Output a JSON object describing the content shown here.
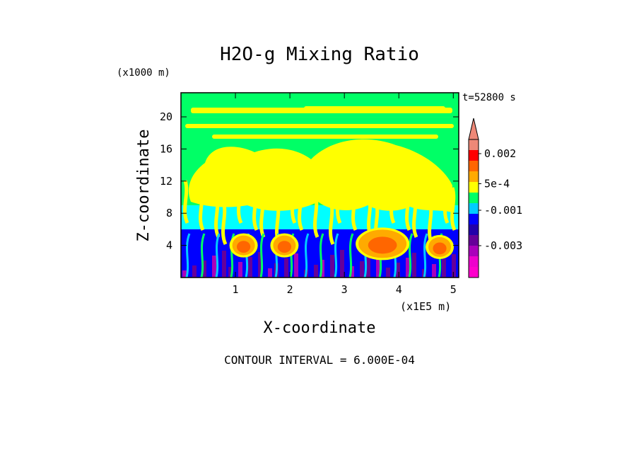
{
  "chart_data": {
    "type": "heatmap",
    "title": "H2O-g Mixing Ratio",
    "xlabel": "X-coordinate",
    "ylabel": "Z-coordinate",
    "x_unit": "(x1E5 m)",
    "y_unit": "(x1000 m)",
    "time_label": "t=52800 s",
    "footer": "CONTOUR INTERVAL = 6.000E-04",
    "xlim": [
      0,
      5.1
    ],
    "ylim": [
      0,
      23
    ],
    "x_ticks": [
      1,
      2,
      3,
      4,
      5
    ],
    "y_ticks": [
      4,
      8,
      12,
      16,
      20
    ],
    "x_tick_labels": [
      "1",
      "2",
      "3",
      "4",
      "5"
    ],
    "y_tick_labels": [
      "4",
      "8",
      "12",
      "16",
      "20"
    ],
    "colorbar_labels": [
      {
        "text": "0.002",
        "value": 0.0022
      },
      {
        "text": "5e-4",
        "value": 0.0005
      },
      {
        "text": "-0.001",
        "value": -0.001
      },
      {
        "text": "-0.003",
        "value": -0.003
      }
    ],
    "colorbar_levels": [
      {
        "value": -0.0045,
        "color": "#ff00cc"
      },
      {
        "value": -0.0039,
        "color": "#ee00cc"
      },
      {
        "value": -0.0033,
        "color": "#aa00bb"
      },
      {
        "value": -0.0027,
        "color": "#660099"
      },
      {
        "value": -0.0021,
        "color": "#2200aa"
      },
      {
        "value": -0.0015,
        "color": "#0000ff"
      },
      {
        "value": -0.0009,
        "color": "#00ccff"
      },
      {
        "value": -0.0003,
        "color": "#00ff66"
      },
      {
        "value": 0.0003,
        "color": "#ffff00"
      },
      {
        "value": 0.0009,
        "color": "#ffaa00"
      },
      {
        "value": 0.0015,
        "color": "#ff6600"
      },
      {
        "value": 0.0021,
        "color": "#ff0000"
      },
      {
        "value": 0.0027,
        "color": "#ee8877"
      }
    ],
    "regions": [
      {
        "name": "top-band",
        "z_range": [
          20,
          23
        ],
        "color": "#00ff66",
        "note": "green with yellow streaks"
      },
      {
        "name": "upper",
        "z_range": [
          9,
          20
        ],
        "color": "#ffff00",
        "note": "yellow plumes on green"
      },
      {
        "name": "mid",
        "z_range": [
          6,
          9
        ],
        "color": "#00ffff",
        "note": "cyan layer"
      },
      {
        "name": "lower",
        "z_range": [
          0,
          6
        ],
        "color": "#0000ff",
        "note": "blue/purple with orange bubbles"
      }
    ],
    "features": [
      {
        "type": "orange-bubble",
        "x": 1.15,
        "z": 4.0
      },
      {
        "type": "orange-bubble",
        "x": 1.9,
        "z": 4.0
      },
      {
        "type": "orange-bubble",
        "x": 3.7,
        "z": 4.2
      },
      {
        "type": "orange-bubble",
        "x": 4.75,
        "z": 3.8
      }
    ]
  }
}
